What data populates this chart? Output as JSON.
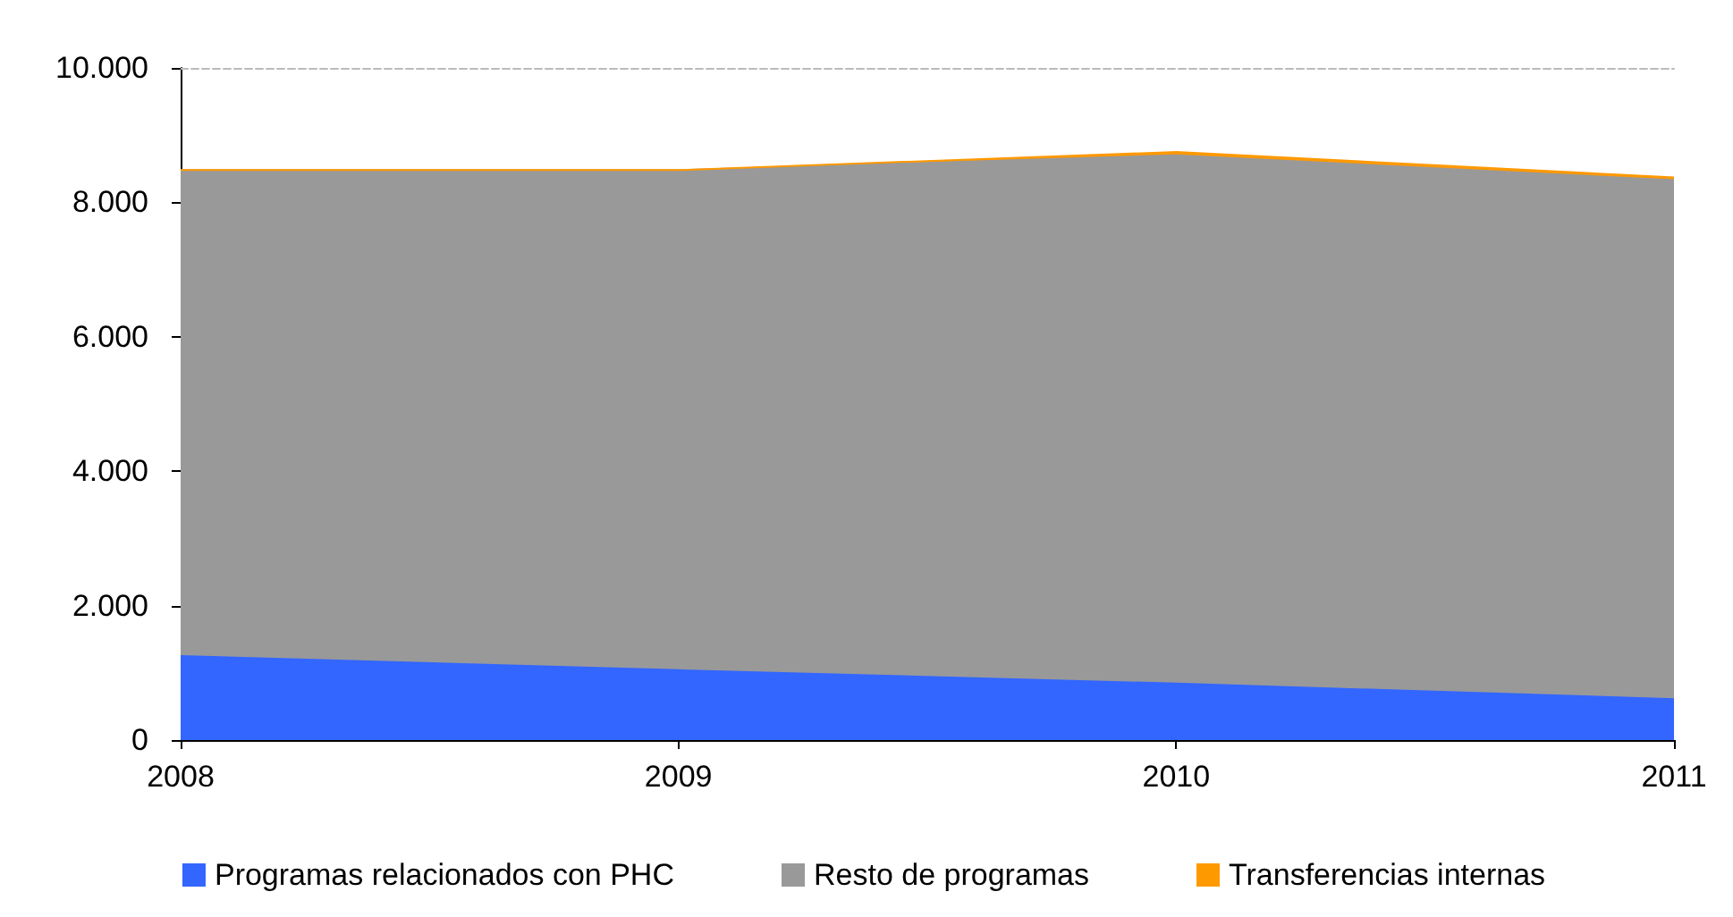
{
  "chart_data": {
    "type": "area",
    "stacked": true,
    "categories": [
      "2008",
      "2009",
      "2010",
      "2011"
    ],
    "series": [
      {
        "name": "Programas relacionados con PHC",
        "color": "#3366ff",
        "values": [
          1250,
          1040,
          840,
          610
        ]
      },
      {
        "name": "Resto de programas",
        "color": "#999999",
        "values": [
          7230,
          7440,
          7860,
          7720
        ]
      },
      {
        "name": "Transferencias internas",
        "color": "#ff9900",
        "values": [
          0,
          0,
          50,
          40
        ]
      }
    ],
    "ylim": [
      0,
      10000
    ],
    "yticks": [
      {
        "value": 0,
        "label": "0"
      },
      {
        "value": 2000,
        "label": "2.000"
      },
      {
        "value": 4000,
        "label": "4.000"
      },
      {
        "value": 6000,
        "label": "6.000"
      },
      {
        "value": 8000,
        "label": "8.000"
      },
      {
        "value": 10000,
        "label": "10.000"
      }
    ],
    "legend": "bottom"
  }
}
